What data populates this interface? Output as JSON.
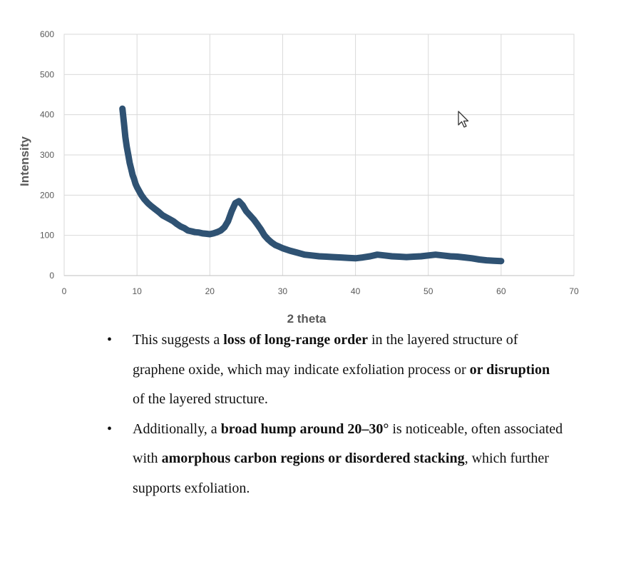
{
  "chart_data": {
    "type": "scatter",
    "title": "",
    "xlabel": "2 theta",
    "ylabel": "Intensity",
    "xlim": [
      0,
      70
    ],
    "ylim": [
      0,
      600
    ],
    "xticks": [
      0,
      10,
      20,
      30,
      40,
      50,
      60,
      70
    ],
    "yticks": [
      0,
      100,
      200,
      300,
      400,
      500,
      600
    ],
    "grid": true,
    "legend": "none",
    "marker_color": "#2f5273",
    "series": [
      {
        "values_x": [
          8.0,
          8.2,
          8.4,
          8.6,
          8.8,
          9.0,
          9.2,
          9.4,
          9.6,
          9.8,
          10.0,
          10.3,
          10.6,
          11.0,
          11.5,
          12.0,
          12.5,
          13.0,
          13.5,
          14.0,
          14.5,
          15.0,
          15.5,
          16.0,
          16.5,
          17.0,
          17.5,
          18.0,
          18.5,
          19.0,
          19.5,
          20.0,
          20.5,
          21.0,
          21.5,
          22.0,
          22.5,
          23.0,
          23.5,
          24.0,
          24.5,
          25.0,
          25.5,
          26.0,
          26.5,
          27.0,
          27.5,
          28.0,
          28.5,
          29.0,
          29.5,
          30.0,
          31.0,
          32.0,
          33.0,
          34.0,
          35.0,
          36.0,
          37.0,
          38.0,
          39.0,
          40.0,
          41.0,
          42.0,
          43.0,
          44.0,
          45.0,
          46.0,
          47.0,
          48.0,
          49.0,
          50.0,
          51.0,
          52.0,
          53.0,
          54.0,
          55.0,
          56.0,
          57.0,
          58.0,
          59.0,
          60.0
        ],
        "values_y": [
          415,
          380,
          345,
          320,
          300,
          280,
          265,
          250,
          240,
          228,
          220,
          210,
          200,
          190,
          180,
          172,
          165,
          158,
          150,
          145,
          140,
          135,
          128,
          122,
          118,
          112,
          110,
          108,
          107,
          105,
          104,
          103,
          105,
          108,
          112,
          120,
          135,
          160,
          180,
          185,
          175,
          160,
          150,
          140,
          128,
          115,
          100,
          90,
          82,
          76,
          72,
          68,
          62,
          57,
          52,
          50,
          48,
          47,
          46,
          45,
          44,
          43,
          45,
          48,
          52,
          50,
          48,
          47,
          46,
          47,
          48,
          50,
          52,
          50,
          48,
          47,
          45,
          43,
          40,
          38,
          37,
          36
        ]
      }
    ]
  },
  "notes": {
    "bullet": "•",
    "items": [
      {
        "s1": "This suggests a ",
        "b1": "loss of long-range order",
        "s2": " in the layered structure of graphene oxide, which may indicate exfoliation process or ",
        "b2": "or disruption",
        "s3": " of the layered structure."
      },
      {
        "s1": "Additionally, a ",
        "b1": "broad hump around 20–30°",
        "s2": " is noticeable, often associated with ",
        "b2": "amorphous carbon regions or disordered stacking",
        "s3": ", which further supports exfoliation."
      }
    ]
  }
}
